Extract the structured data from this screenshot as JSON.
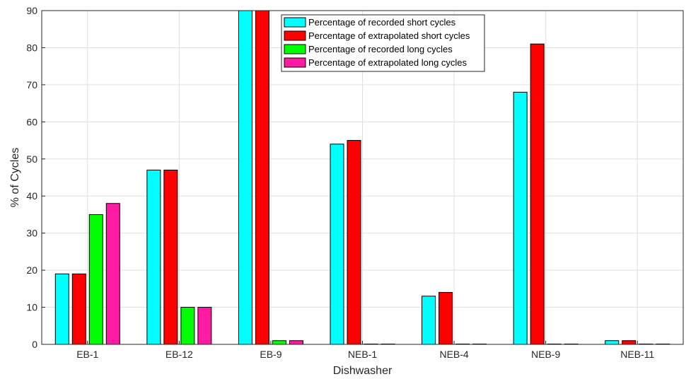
{
  "chart_data": {
    "type": "bar",
    "title": "",
    "xlabel": "Dishwasher",
    "ylabel": "% of Cycles",
    "ylim": [
      0,
      90
    ],
    "yticks": [
      "0",
      "10",
      "20",
      "30",
      "40",
      "50",
      "60",
      "70",
      "80",
      "90"
    ],
    "grid": true,
    "legend_position": "top-center",
    "categories": [
      "EB-1",
      "EB-12",
      "EB-9",
      "NEB-1",
      "NEB-4",
      "NEB-9",
      "NEB-11"
    ],
    "series": [
      {
        "name": "Percentage of recorded short cycles",
        "color": "#00ffff",
        "values": [
          19,
          47,
          90,
          54,
          13,
          68,
          1
        ]
      },
      {
        "name": "Percentage of extrapolated short cycles",
        "color": "#ff0000",
        "values": [
          19,
          47,
          90,
          55,
          14,
          81,
          1
        ]
      },
      {
        "name": "Percentage of recorded long cycles",
        "color": "#00ff00",
        "values": [
          35,
          10,
          1,
          0,
          0,
          0,
          0
        ]
      },
      {
        "name": "Percentage of extrapolated long cycles",
        "color": "#ff1aa3",
        "values": [
          38,
          10,
          1,
          0,
          0,
          0,
          0
        ]
      }
    ]
  }
}
